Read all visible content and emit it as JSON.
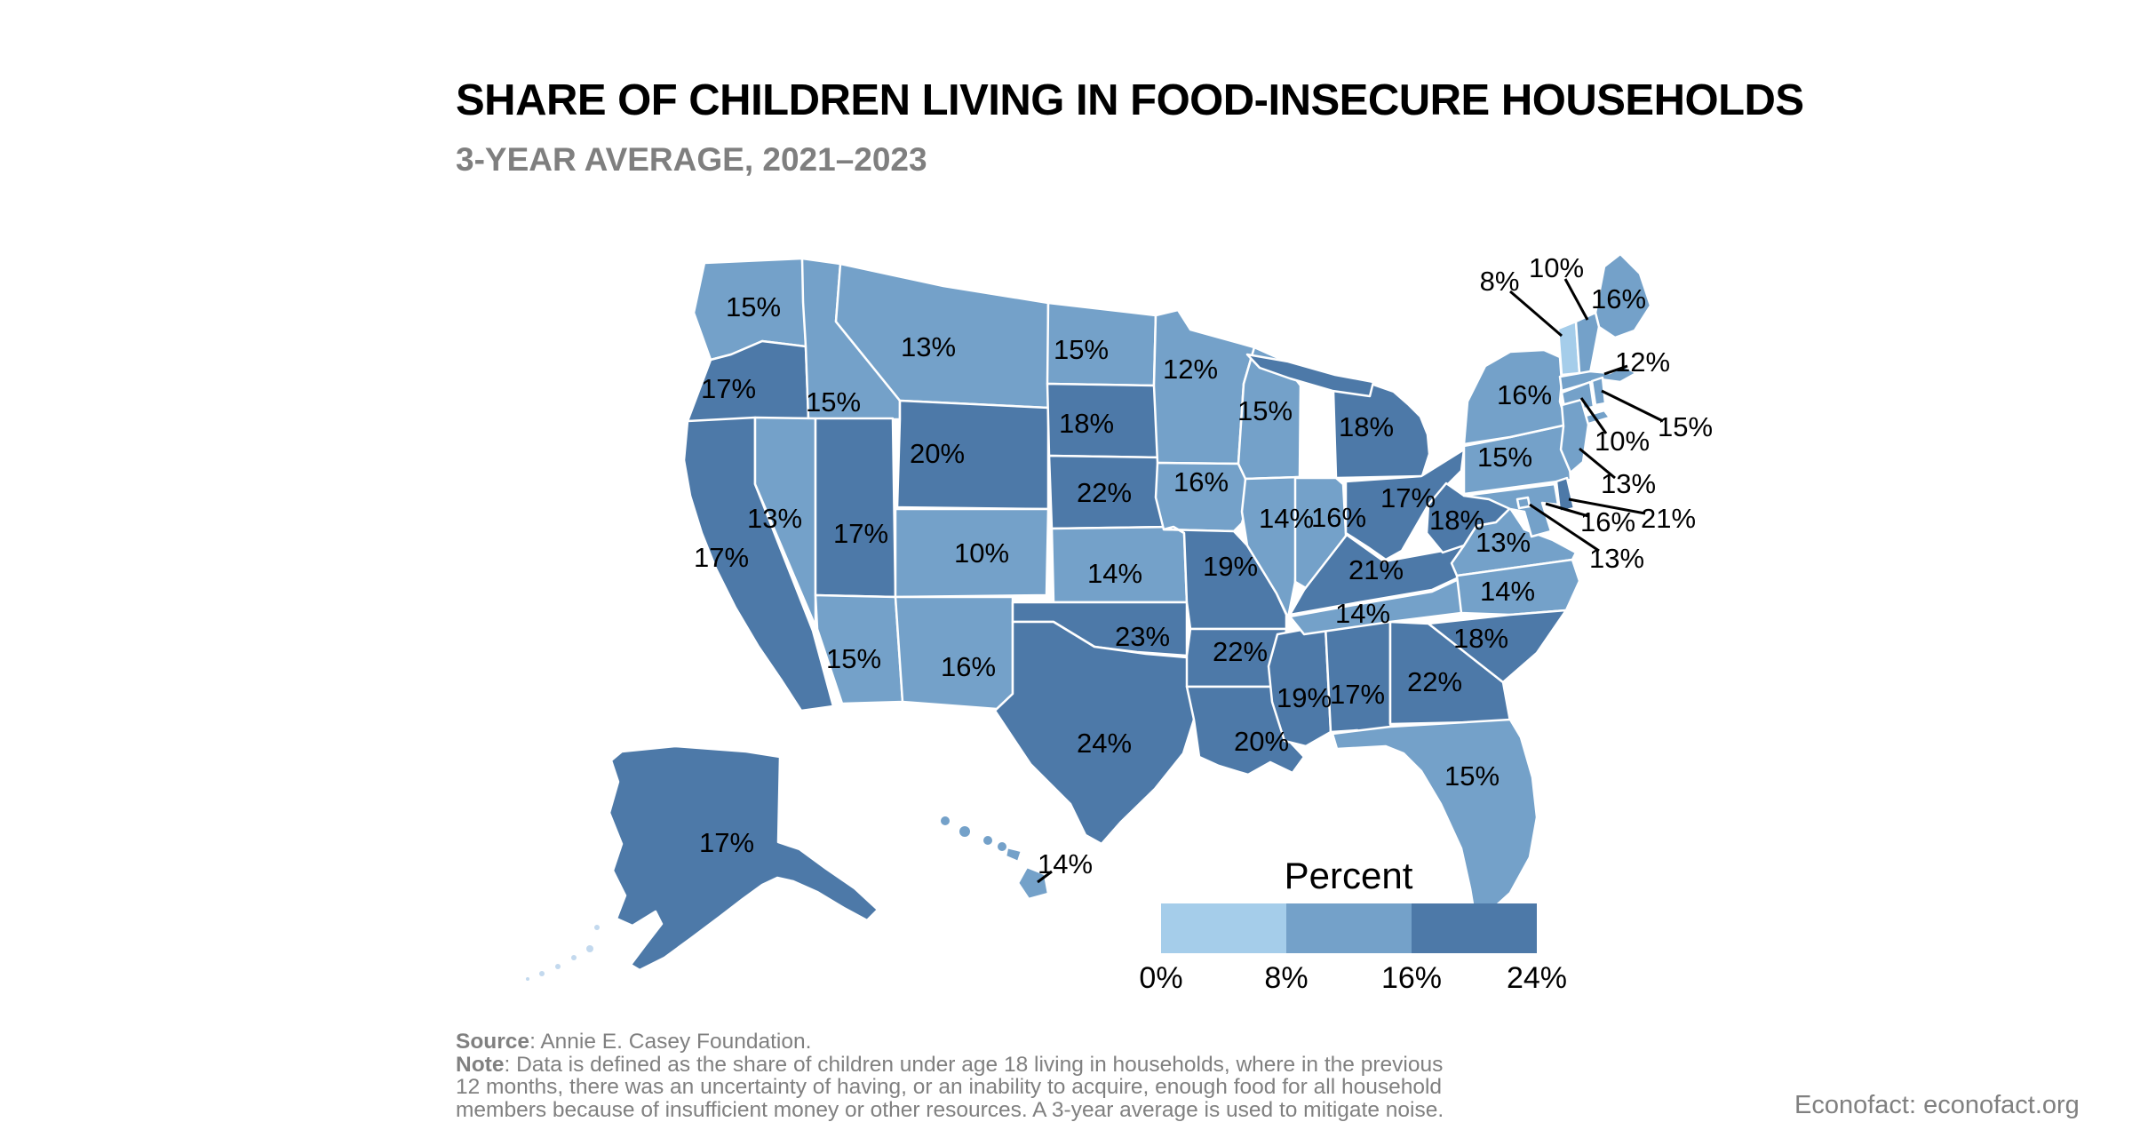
{
  "title": "SHARE OF CHILDREN LIVING IN FOOD-INSECURE HOUSEHOLDS",
  "subtitle": "3-YEAR AVERAGE, 2021–2023",
  "legend": {
    "title": "Percent",
    "ticks": [
      "0%",
      "8%",
      "16%",
      "24%"
    ],
    "colors": {
      "low": "#a5cdea",
      "mid": "#74a1c9",
      "high": "#4d79a8"
    }
  },
  "footer": {
    "source_label": "Source",
    "source_text": ": Annie E. Casey Foundation.",
    "note_label": "Note",
    "note_line1": ": Data is defined as the share of children under age 18 living in households, where in the previous",
    "note_line2": "12 months, there was an uncertainty of having, or an inability to acquire, enough food for all household",
    "note_line3": "members because of insufficient money or other resources. A 3-year average is used to mitigate noise.",
    "branding": "Econofact: econofact.org"
  },
  "chart_data": {
    "type": "choropleth_map",
    "region": "United States (50 states + DC)",
    "metric": "Share of children living in food-insecure households",
    "unit": "percent",
    "period": "3-year average, 2021–2023",
    "legend_title": "Percent",
    "bins": [
      {
        "range": [
          0,
          8
        ],
        "color": "#a5cdea"
      },
      {
        "range": [
          8,
          16
        ],
        "color": "#74a1c9"
      },
      {
        "range": [
          16,
          24
        ],
        "color": "#4d79a8"
      }
    ],
    "states": [
      {
        "abbr": "AL",
        "name": "Alabama",
        "value": 17
      },
      {
        "abbr": "AK",
        "name": "Alaska",
        "value": 17
      },
      {
        "abbr": "AZ",
        "name": "Arizona",
        "value": 15
      },
      {
        "abbr": "AR",
        "name": "Arkansas",
        "value": 22
      },
      {
        "abbr": "CA",
        "name": "California",
        "value": 17
      },
      {
        "abbr": "CO",
        "name": "Colorado",
        "value": 10
      },
      {
        "abbr": "CT",
        "name": "Connecticut",
        "value": 10
      },
      {
        "abbr": "DE",
        "name": "Delaware",
        "value": 21
      },
      {
        "abbr": "DC",
        "name": "District of Columbia",
        "value": 13
      },
      {
        "abbr": "FL",
        "name": "Florida",
        "value": 15
      },
      {
        "abbr": "GA",
        "name": "Georgia",
        "value": 22
      },
      {
        "abbr": "HI",
        "name": "Hawaii",
        "value": 14
      },
      {
        "abbr": "ID",
        "name": "Idaho",
        "value": 15
      },
      {
        "abbr": "IL",
        "name": "Illinois",
        "value": 14
      },
      {
        "abbr": "IN",
        "name": "Indiana",
        "value": 16
      },
      {
        "abbr": "IA",
        "name": "Iowa",
        "value": 16
      },
      {
        "abbr": "KS",
        "name": "Kansas",
        "value": 14
      },
      {
        "abbr": "KY",
        "name": "Kentucky",
        "value": 21
      },
      {
        "abbr": "LA",
        "name": "Louisiana",
        "value": 20
      },
      {
        "abbr": "ME",
        "name": "Maine",
        "value": 16
      },
      {
        "abbr": "MD",
        "name": "Maryland",
        "value": 16
      },
      {
        "abbr": "MA",
        "name": "Massachusetts",
        "value": 12
      },
      {
        "abbr": "MI",
        "name": "Michigan",
        "value": 18
      },
      {
        "abbr": "MN",
        "name": "Minnesota",
        "value": 12
      },
      {
        "abbr": "MS",
        "name": "Mississippi",
        "value": 19
      },
      {
        "abbr": "MO",
        "name": "Missouri",
        "value": 19
      },
      {
        "abbr": "MT",
        "name": "Montana",
        "value": 13
      },
      {
        "abbr": "NE",
        "name": "Nebraska",
        "value": 22
      },
      {
        "abbr": "NV",
        "name": "Nevada",
        "value": 13
      },
      {
        "abbr": "NH",
        "name": "New Hampshire",
        "value": 10
      },
      {
        "abbr": "NJ",
        "name": "New Jersey",
        "value": 13
      },
      {
        "abbr": "NM",
        "name": "New Mexico",
        "value": 16
      },
      {
        "abbr": "NY",
        "name": "New York",
        "value": 16
      },
      {
        "abbr": "NC",
        "name": "North Carolina",
        "value": 14
      },
      {
        "abbr": "ND",
        "name": "North Dakota",
        "value": 15
      },
      {
        "abbr": "OH",
        "name": "Ohio",
        "value": 17
      },
      {
        "abbr": "OK",
        "name": "Oklahoma",
        "value": 23
      },
      {
        "abbr": "OR",
        "name": "Oregon",
        "value": 17
      },
      {
        "abbr": "PA",
        "name": "Pennsylvania",
        "value": 15
      },
      {
        "abbr": "RI",
        "name": "Rhode Island",
        "value": 15
      },
      {
        "abbr": "SC",
        "name": "South Carolina",
        "value": 18
      },
      {
        "abbr": "SD",
        "name": "South Dakota",
        "value": 18
      },
      {
        "abbr": "TN",
        "name": "Tennessee",
        "value": 14
      },
      {
        "abbr": "TX",
        "name": "Texas",
        "value": 24
      },
      {
        "abbr": "UT",
        "name": "Utah",
        "value": 17
      },
      {
        "abbr": "VT",
        "name": "Vermont",
        "value": 8
      },
      {
        "abbr": "VA",
        "name": "Virginia",
        "value": 13
      },
      {
        "abbr": "WA",
        "name": "Washington",
        "value": 15
      },
      {
        "abbr": "WV",
        "name": "West Virginia",
        "value": 18
      },
      {
        "abbr": "WI",
        "name": "Wisconsin",
        "value": 15
      },
      {
        "abbr": "WY",
        "name": "Wyoming",
        "value": 20
      }
    ]
  }
}
